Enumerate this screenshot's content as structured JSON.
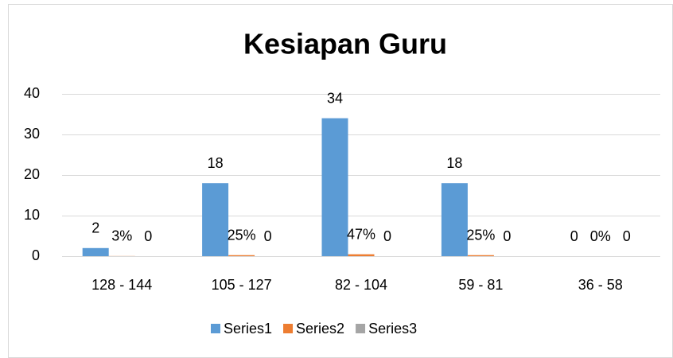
{
  "chart_data": {
    "type": "bar",
    "title": "Kesiapan Guru",
    "categories": [
      "128 - 144",
      "105 - 127",
      "82 - 104",
      "59 - 81",
      "36 - 58"
    ],
    "series": [
      {
        "name": "Series1",
        "color": "#5b9bd5",
        "values": [
          2,
          18,
          34,
          18,
          0
        ]
      },
      {
        "name": "Series2",
        "color": "#ed7d31",
        "values": [
          0.03,
          0.25,
          0.47,
          0.25,
          0
        ],
        "value_labels": [
          "3%",
          "25%",
          "47%",
          "25%",
          "0%"
        ]
      },
      {
        "name": "Series3",
        "color": "#a5a5a5",
        "values": [
          0,
          0,
          0,
          0,
          0
        ]
      }
    ],
    "ylim": [
      0,
      40
    ],
    "yticks": [
      0,
      10,
      20,
      30,
      40
    ],
    "grid": true,
    "legend": "bottom"
  }
}
